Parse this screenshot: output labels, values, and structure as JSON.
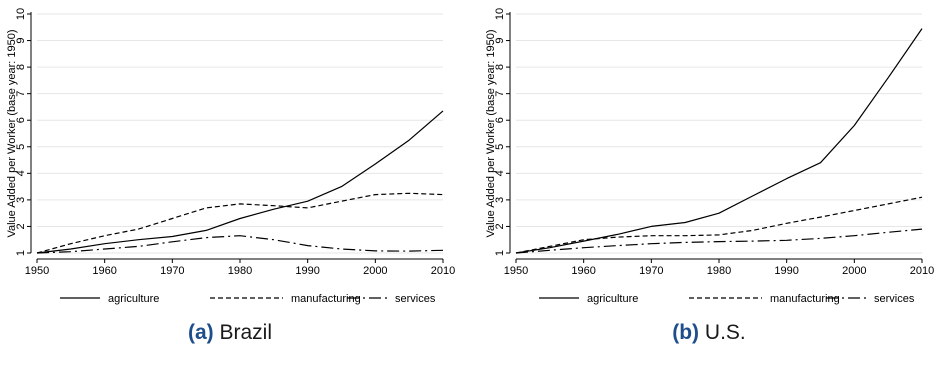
{
  "chart_data": [
    {
      "type": "line",
      "caption_tag": "(a)",
      "caption_text": "Brazil",
      "ylabel": "Value Added per Worker (base year: 1950)",
      "xlabel": "",
      "xlim": [
        1950,
        2010
      ],
      "ylim": [
        1,
        10
      ],
      "xticks": [
        1950,
        1960,
        1970,
        1980,
        1990,
        2000,
        2010
      ],
      "yticks": [
        1,
        2,
        3,
        4,
        5,
        6,
        7,
        8,
        9,
        10
      ],
      "grid": true,
      "legend_position": "bottom",
      "series": [
        {
          "name": "agriculture",
          "style": "solid",
          "x": [
            1950,
            1955,
            1960,
            1965,
            1970,
            1975,
            1980,
            1985,
            1990,
            1995,
            2000,
            2005,
            2010
          ],
          "y": [
            1.0,
            1.15,
            1.35,
            1.5,
            1.62,
            1.85,
            2.3,
            2.65,
            2.95,
            3.5,
            4.35,
            5.25,
            6.35
          ]
        },
        {
          "name": "manufacturing",
          "style": "dashed",
          "x": [
            1950,
            1955,
            1960,
            1965,
            1970,
            1975,
            1980,
            1985,
            1990,
            1995,
            2000,
            2005,
            2010
          ],
          "y": [
            1.0,
            1.35,
            1.65,
            1.9,
            2.3,
            2.7,
            2.85,
            2.78,
            2.7,
            2.95,
            3.2,
            3.25,
            3.2
          ]
        },
        {
          "name": "services",
          "style": "dashdot",
          "x": [
            1950,
            1955,
            1960,
            1965,
            1970,
            1975,
            1980,
            1985,
            1990,
            1995,
            2000,
            2005,
            2010
          ],
          "y": [
            1.0,
            1.05,
            1.15,
            1.25,
            1.42,
            1.58,
            1.65,
            1.5,
            1.28,
            1.15,
            1.08,
            1.07,
            1.1
          ]
        }
      ]
    },
    {
      "type": "line",
      "caption_tag": "(b)",
      "caption_text": "U.S.",
      "ylabel": "Value Added per Worker (base year: 1950)",
      "xlabel": "",
      "xlim": [
        1950,
        2010
      ],
      "ylim": [
        1,
        10
      ],
      "xticks": [
        1950,
        1960,
        1970,
        1980,
        1990,
        2000,
        2010
      ],
      "yticks": [
        1,
        2,
        3,
        4,
        5,
        6,
        7,
        8,
        9,
        10
      ],
      "grid": true,
      "legend_position": "bottom",
      "series": [
        {
          "name": "agriculture",
          "style": "solid",
          "x": [
            1950,
            1955,
            1960,
            1965,
            1970,
            1975,
            1980,
            1985,
            1990,
            1995,
            2000,
            2005,
            2010
          ],
          "y": [
            1.0,
            1.2,
            1.45,
            1.7,
            2.0,
            2.15,
            2.5,
            3.15,
            3.8,
            4.4,
            5.8,
            7.6,
            9.45
          ]
        },
        {
          "name": "manufacturing",
          "style": "dashed",
          "x": [
            1950,
            1955,
            1960,
            1965,
            1970,
            1975,
            1980,
            1985,
            1990,
            1995,
            2000,
            2005,
            2010
          ],
          "y": [
            1.0,
            1.25,
            1.5,
            1.6,
            1.65,
            1.65,
            1.68,
            1.85,
            2.12,
            2.35,
            2.6,
            2.85,
            3.1
          ]
        },
        {
          "name": "services",
          "style": "dashdot",
          "x": [
            1950,
            1955,
            1960,
            1965,
            1970,
            1975,
            1980,
            1985,
            1990,
            1995,
            2000,
            2005,
            2010
          ],
          "y": [
            1.0,
            1.1,
            1.2,
            1.28,
            1.35,
            1.4,
            1.43,
            1.45,
            1.48,
            1.55,
            1.65,
            1.78,
            1.9
          ]
        }
      ]
    }
  ]
}
